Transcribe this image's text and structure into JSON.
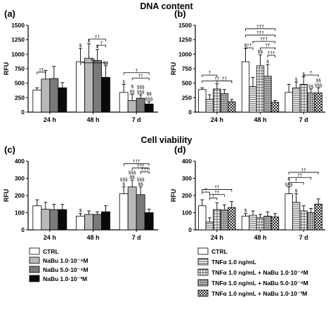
{
  "titles": {
    "top": "DNA content",
    "bottom": "Cell viability"
  },
  "chart_data": [
    {
      "panel_label": "(a)",
      "type": "bar",
      "ylabel": "RFU",
      "ylim": [
        0,
        1500
      ],
      "yticks": [
        0,
        250,
        500,
        750,
        1000,
        1250,
        1500
      ],
      "categories": [
        "24 h",
        "48 h",
        "7 d"
      ],
      "series": [
        {
          "name": "CTRL",
          "values": [
            380,
            870,
            340
          ],
          "errors": [
            40,
            230,
            140
          ],
          "annotations": [
            "",
            "$",
            "§"
          ]
        },
        {
          "name": "NaBu 1.0·10⁻⁴M",
          "values": [
            570,
            930,
            200
          ],
          "errors": [
            150,
            250,
            110
          ],
          "annotations": [
            "",
            "$",
            "$ §§"
          ]
        },
        {
          "name": "NaBu 5.0·10⁻⁴M",
          "values": [
            580,
            890,
            240
          ],
          "errors": [
            210,
            190,
            60
          ],
          "annotations": [
            "",
            "$",
            "§§§ §§§"
          ]
        },
        {
          "name": "NaBu 1.0·10⁻³M",
          "values": [
            420,
            600,
            140
          ],
          "errors": [
            90,
            200,
            40
          ],
          "annotations": [
            "",
            "$$",
            "$$ §§§"
          ]
        }
      ],
      "brackets": [
        {
          "label": "††",
          "cat": 0,
          "from": 0,
          "to": 1,
          "y": 690
        },
        {
          "label": "††",
          "cat": 1,
          "from": 1,
          "to": 3,
          "y": 1260
        },
        {
          "label": "†",
          "cat": 1,
          "from": 2,
          "to": 3,
          "y": 1155
        },
        {
          "label": "††",
          "cat": 1,
          "from": 0,
          "to": 3,
          "y": 850
        },
        {
          "label": "†",
          "cat": 2,
          "from": 0,
          "to": 3,
          "y": 680
        },
        {
          "label": "††",
          "cat": 2,
          "from": 1,
          "to": 3,
          "y": 585
        }
      ]
    },
    {
      "panel_label": "(b)",
      "type": "bar",
      "ylabel": "RFU",
      "ylim": [
        0,
        1500
      ],
      "yticks": [
        0,
        250,
        500,
        750,
        1000,
        1250,
        1500
      ],
      "categories": [
        "24 h",
        "48 h",
        "7 d"
      ],
      "series": [
        {
          "name": "CTRL",
          "values": [
            390,
            870,
            340
          ],
          "errors": [
            30,
            230,
            140
          ],
          "annotations": [
            "",
            "$",
            ""
          ]
        },
        {
          "name": "TNFα 1.0 ng/mL",
          "values": [
            220,
            440,
            420
          ],
          "errors": [
            80,
            160,
            100
          ],
          "annotations": [
            "",
            "",
            "§"
          ]
        },
        {
          "name": "TNFα 1.0 ng/mL + NaBu 1.0·10⁻⁴M",
          "values": [
            400,
            800,
            480
          ],
          "errors": [
            90,
            190,
            130
          ],
          "annotations": [
            "",
            "$$",
            "§"
          ]
        },
        {
          "name": "TNFα 1.0 ng/mL + NaBu 5.0·10⁻⁴M",
          "values": [
            320,
            620,
            330
          ],
          "errors": [
            70,
            200,
            70
          ],
          "annotations": [
            "",
            "$",
            "§§"
          ]
        },
        {
          "name": "TNFα 1.0 ng/mL + NaBu 1.0·10⁻³M",
          "values": [
            180,
            170,
            330
          ],
          "errors": [
            40,
            30,
            90
          ],
          "annotations": [
            "",
            "",
            "§§ §§§"
          ]
        }
      ],
      "brackets": [
        {
          "label": "†",
          "cat": 0,
          "from": 0,
          "to": 2,
          "y": 640
        },
        {
          "label": "††",
          "cat": 0,
          "from": 0,
          "to": 4,
          "y": 540
        },
        {
          "label": "††",
          "cat": 0,
          "from": 2,
          "to": 4,
          "y": 540
        },
        {
          "label": "†††",
          "cat": 1,
          "from": 0,
          "to": 4,
          "y": 1440
        },
        {
          "label": "†††",
          "cat": 1,
          "from": 0,
          "to": 4,
          "y": 1330
        },
        {
          "label": "†††",
          "cat": 1,
          "from": 1,
          "to": 4,
          "y": 1220
        },
        {
          "label": "††",
          "cat": 1,
          "from": 0,
          "to": 1,
          "y": 1110
        },
        {
          "label": "††",
          "cat": 1,
          "from": 2,
          "to": 4,
          "y": 1110
        },
        {
          "label": "†††",
          "cat": 1,
          "from": 3,
          "to": 4,
          "y": 980
        },
        {
          "label": "†",
          "cat": 2,
          "from": 2,
          "to": 4,
          "y": 640
        }
      ]
    },
    {
      "panel_label": "(c)",
      "type": "bar",
      "ylabel": "RFU",
      "ylim": [
        0,
        400
      ],
      "yticks": [
        0,
        100,
        200,
        300,
        400
      ],
      "categories": [
        "24 h",
        "48 h",
        "7 d"
      ],
      "series": [
        {
          "name": "CTRL",
          "values": [
            140,
            80,
            210
          ],
          "errors": [
            35,
            15,
            40
          ],
          "annotations": [
            "",
            "$",
            "§§§ $"
          ]
        },
        {
          "name": "NaBu 1.0·10⁻⁴M",
          "values": [
            120,
            90,
            250
          ],
          "errors": [
            40,
            20,
            40
          ],
          "annotations": [
            "",
            "",
            "§§§ $$"
          ]
        },
        {
          "name": "NaBu 5.0·10⁻⁴M",
          "values": [
            118,
            90,
            205
          ],
          "errors": [
            30,
            15,
            45
          ],
          "annotations": [
            "",
            "",
            "§§§ $$"
          ]
        },
        {
          "name": "NaBu 1.0·10⁻³M",
          "values": [
            118,
            105,
            100
          ],
          "errors": [
            30,
            35,
            20
          ],
          "annotations": [
            "",
            "",
            ""
          ]
        }
      ],
      "brackets": [
        {
          "label": "†††",
          "cat": 2,
          "from": 0,
          "to": 3,
          "y": 385
        },
        {
          "label": "†††",
          "cat": 2,
          "from": 1,
          "to": 3,
          "y": 360
        },
        {
          "label": "†††",
          "cat": 2,
          "from": 2,
          "to": 3,
          "y": 338
        }
      ]
    },
    {
      "panel_label": "(d)",
      "type": "bar",
      "ylabel": "RFU",
      "ylim": [
        0,
        400
      ],
      "yticks": [
        0,
        100,
        200,
        300,
        400
      ],
      "categories": [
        "24 h",
        "48 h",
        "7 d"
      ],
      "series": [
        {
          "name": "CTRL",
          "values": [
            140,
            80,
            210
          ],
          "errors": [
            35,
            15,
            40
          ],
          "annotations": [
            "",
            "$",
            "$ §§§"
          ]
        },
        {
          "name": "TNFα 1.0 ng/mL",
          "values": [
            45,
            85,
            160
          ],
          "errors": [
            25,
            25,
            50
          ],
          "annotations": [
            "",
            "",
            "$"
          ]
        },
        {
          "name": "TNFα 1.0 ng/mL + NaBu 1.0·10⁻⁴M",
          "values": [
            118,
            70,
            110
          ],
          "errors": [
            40,
            20,
            30
          ],
          "annotations": [
            "",
            "",
            ""
          ]
        },
        {
          "name": "TNFα 1.0 ng/mL + NaBu 5.0·10⁻⁴M",
          "values": [
            115,
            80,
            100
          ],
          "errors": [
            30,
            25,
            25
          ],
          "annotations": [
            "",
            "",
            ""
          ]
        },
        {
          "name": "TNFα 1.0 ng/mL + NaBu 1.0·10⁻³M",
          "values": [
            130,
            75,
            150
          ],
          "errors": [
            35,
            20,
            30
          ],
          "annotations": [
            "",
            "",
            ""
          ]
        }
      ],
      "brackets": [
        {
          "label": "††",
          "cat": 0,
          "from": 0,
          "to": 4,
          "y": 235
        },
        {
          "label": "†",
          "cat": 0,
          "from": 0,
          "to": 1,
          "y": 220
        },
        {
          "label": "††",
          "cat": 0,
          "from": 1,
          "to": 3,
          "y": 205
        },
        {
          "label": "†",
          "cat": 0,
          "from": 1,
          "to": 2,
          "y": 185
        },
        {
          "label": "††",
          "cat": 2,
          "from": 0,
          "to": 4,
          "y": 335
        },
        {
          "label": "††",
          "cat": 2,
          "from": 0,
          "to": 3,
          "y": 305
        },
        {
          "label": "†",
          "cat": 2,
          "from": 0,
          "to": 2,
          "y": 275
        }
      ]
    }
  ],
  "legends": {
    "left": [
      {
        "label": "CTRL",
        "fill": "white"
      },
      {
        "label": "NaBu 1.0·10⁻⁴M",
        "fill": "lightgray"
      },
      {
        "label": "NaBu 5.0·10⁻⁴M",
        "fill": "gray"
      },
      {
        "label": "NaBu 1.0·10⁻³M",
        "fill": "black"
      }
    ],
    "right": [
      {
        "label": "CTRL",
        "fill": "white"
      },
      {
        "label": "TNFα 1.0 ng/mL",
        "fill": "hlines"
      },
      {
        "label": "TNFα 1.0 ng/mL + NaBu 1.0·10⁻⁴M",
        "fill": "grid"
      },
      {
        "label": "TNFα 1.0 ng/mL + NaBu 5.0·10⁻⁴M",
        "fill": "dots"
      },
      {
        "label": "TNFα 1.0 ng/mL + NaBu 1.0·10⁻³M",
        "fill": "check"
      }
    ]
  }
}
